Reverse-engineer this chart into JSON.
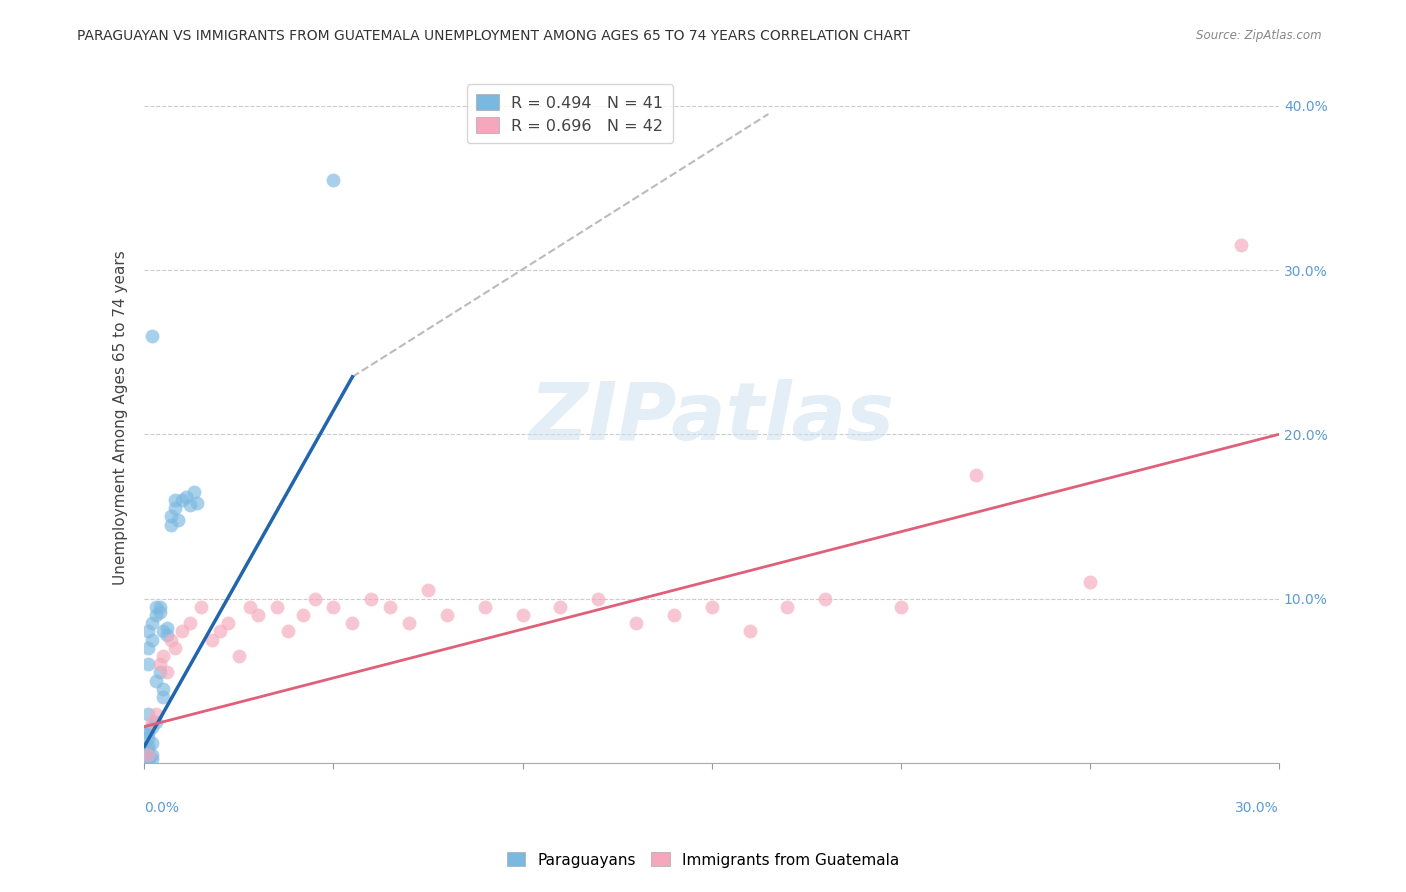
{
  "title": "PARAGUAYAN VS IMMIGRANTS FROM GUATEMALA UNEMPLOYMENT AMONG AGES 65 TO 74 YEARS CORRELATION CHART",
  "source": "Source: ZipAtlas.com",
  "ylabel": "Unemployment Among Ages 65 to 74 years",
  "ytick_values": [
    0.0,
    0.1,
    0.2,
    0.3,
    0.4
  ],
  "ytick_labels": [
    "",
    "10.0%",
    "20.0%",
    "30.0%",
    "40.0%"
  ],
  "xlim": [
    0.0,
    0.3
  ],
  "ylim": [
    0.0,
    0.42
  ],
  "paraguayan_color": "#7bb8e0",
  "guatemala_color": "#f5a8bb",
  "paraguayan_line_color": "#2166ac",
  "guatemala_line_color": "#e0607a",
  "dashed_line_color": "#bbbbbb",
  "watermark_text": "ZIPatlas",
  "paraguayan_scatter_x": [
    0.001,
    0.001,
    0.001,
    0.001,
    0.001,
    0.002,
    0.002,
    0.002,
    0.002,
    0.003,
    0.003,
    0.003,
    0.003,
    0.004,
    0.004,
    0.004,
    0.005,
    0.005,
    0.005,
    0.006,
    0.006,
    0.007,
    0.007,
    0.008,
    0.008,
    0.009,
    0.01,
    0.011,
    0.012,
    0.013,
    0.014,
    0.002,
    0.001,
    0.001,
    0.002,
    0.001,
    0.05,
    0.001,
    0.001,
    0.002,
    0.001
  ],
  "paraguayan_scatter_y": [
    0.06,
    0.07,
    0.08,
    0.02,
    0.01,
    0.075,
    0.085,
    0.005,
    0.002,
    0.09,
    0.095,
    0.025,
    0.05,
    0.095,
    0.092,
    0.055,
    0.08,
    0.045,
    0.04,
    0.082,
    0.078,
    0.15,
    0.145,
    0.155,
    0.16,
    0.148,
    0.16,
    0.162,
    0.157,
    0.165,
    0.158,
    0.26,
    0.015,
    0.018,
    0.012,
    0.008,
    0.355,
    0.003,
    0.001,
    0.022,
    0.03
  ],
  "guatemala_scatter_x": [
    0.001,
    0.002,
    0.003,
    0.004,
    0.005,
    0.006,
    0.007,
    0.008,
    0.01,
    0.012,
    0.015,
    0.018,
    0.02,
    0.022,
    0.025,
    0.028,
    0.03,
    0.035,
    0.038,
    0.042,
    0.045,
    0.05,
    0.055,
    0.06,
    0.065,
    0.07,
    0.075,
    0.08,
    0.09,
    0.1,
    0.11,
    0.12,
    0.13,
    0.14,
    0.15,
    0.16,
    0.17,
    0.18,
    0.2,
    0.22,
    0.25,
    0.29
  ],
  "guatemala_scatter_y": [
    0.005,
    0.025,
    0.03,
    0.06,
    0.065,
    0.055,
    0.075,
    0.07,
    0.08,
    0.085,
    0.095,
    0.075,
    0.08,
    0.085,
    0.065,
    0.095,
    0.09,
    0.095,
    0.08,
    0.09,
    0.1,
    0.095,
    0.085,
    0.1,
    0.095,
    0.085,
    0.105,
    0.09,
    0.095,
    0.09,
    0.095,
    0.1,
    0.085,
    0.09,
    0.095,
    0.08,
    0.095,
    0.1,
    0.095,
    0.175,
    0.11,
    0.315
  ],
  "paraguayan_line_x": [
    0.0,
    0.055
  ],
  "paraguayan_line_y": [
    0.01,
    0.235
  ],
  "dashed_line_x": [
    0.055,
    0.165
  ],
  "dashed_line_y": [
    0.235,
    0.395
  ],
  "guatemala_line_x": [
    0.0,
    0.3
  ],
  "guatemala_line_y": [
    0.022,
    0.2
  ],
  "legend1_label": "R = 0.494   N = 41",
  "legend2_label": "R = 0.696   N = 42",
  "bottom_legend1": "Paraguayans",
  "bottom_legend2": "Immigrants from Guatemala"
}
